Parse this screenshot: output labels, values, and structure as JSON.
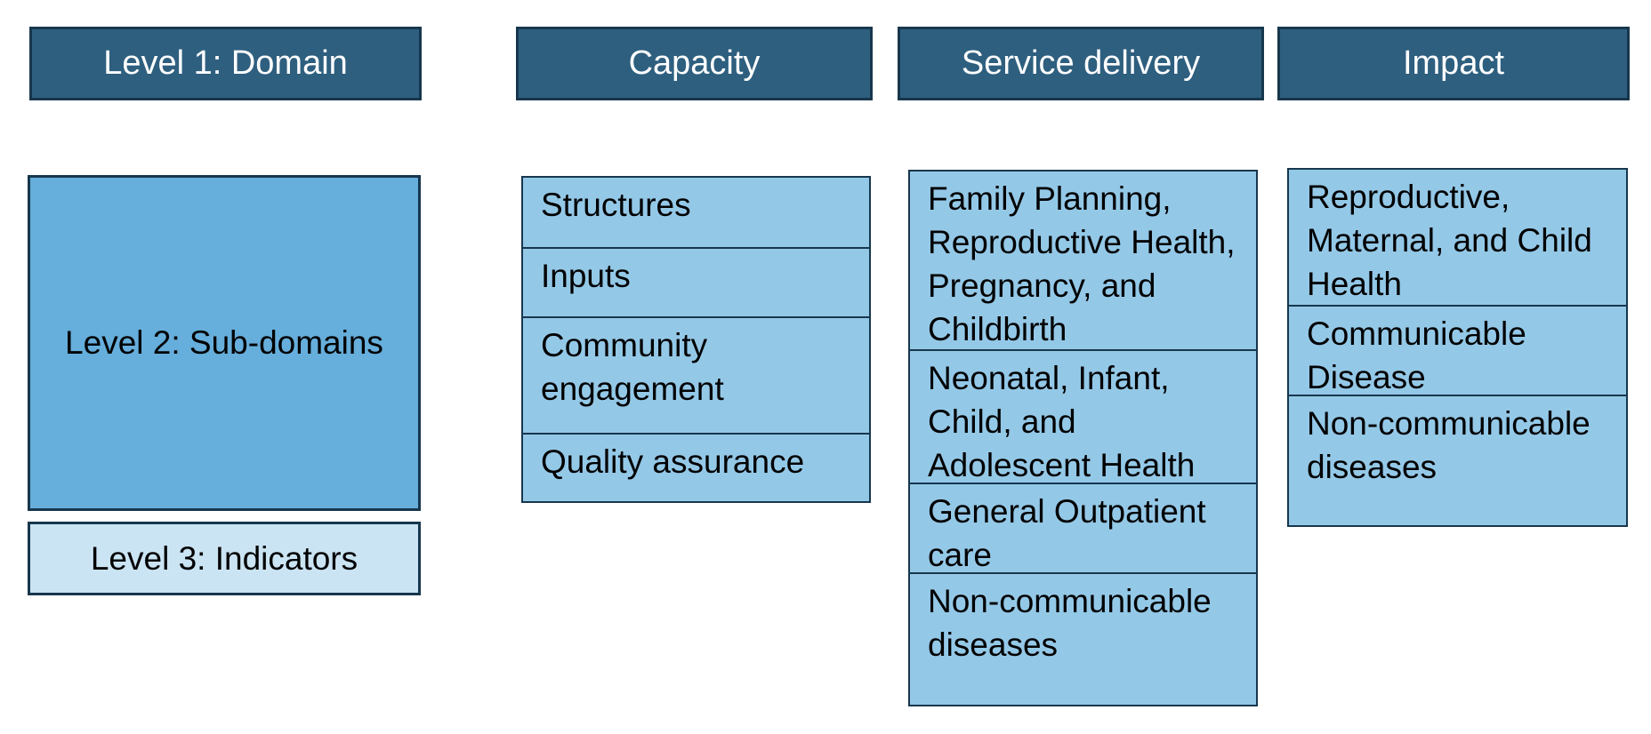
{
  "legend": {
    "domain_label": "Level 1: Domain",
    "subdomain_label": "Level 2: Sub-domains",
    "indicator_label": "Level 3: Indicators"
  },
  "columns": [
    {
      "header": "Capacity",
      "items": [
        "Structures",
        "Inputs",
        "Community engagement",
        "Quality assurance"
      ]
    },
    {
      "header": "Service delivery",
      "items": [
        "Family Planning, Reproductive Health, Pregnancy, and Childbirth",
        "Neonatal, Infant, Child, and Adolescent Health",
        "General Outpatient care",
        "Non-communicable diseases"
      ]
    },
    {
      "header": "Impact",
      "items": [
        "Reproductive, Maternal, and Child Health",
        "Communicable Disease",
        "Non-communicable diseases"
      ]
    }
  ],
  "colors": {
    "domain": "#2e5f7f",
    "subdomain_legend": "#66aedb",
    "subdomain_cell": "#94c8e7",
    "indicator": "#cbe4f3",
    "border": "#17374d"
  }
}
